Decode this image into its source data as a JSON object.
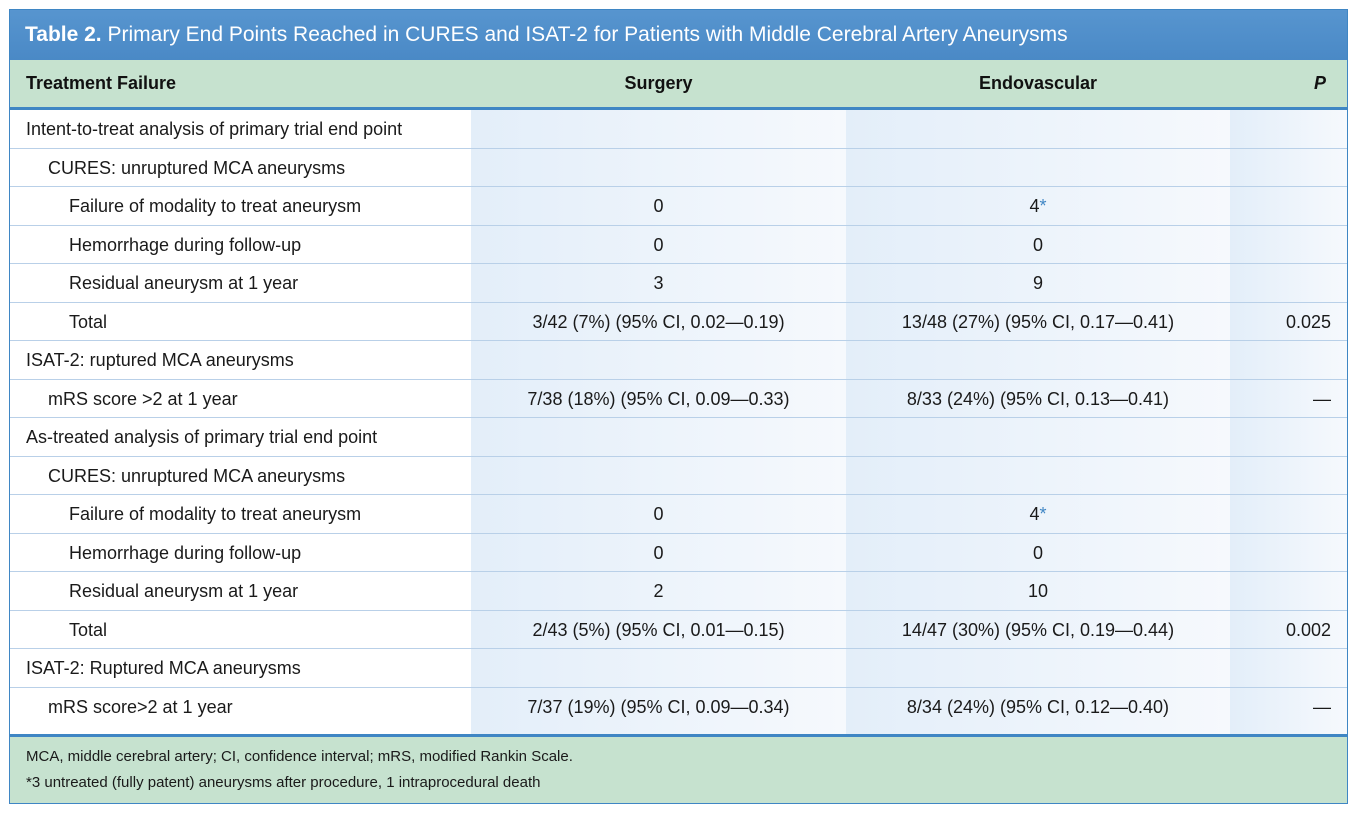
{
  "caption": {
    "label": "Table 2.",
    "title": "Primary End Points Reached in CURES and ISAT-2 for Patients with Middle Cerebral Artery Aneurysms"
  },
  "header": {
    "col1": "Treatment Failure",
    "col2": "Surgery",
    "col3": "Endovascular",
    "col4": "P"
  },
  "rows": [
    {
      "label": "Intent-to-treat analysis of primary trial end point",
      "surgery": "",
      "endo": "",
      "endo_mark": "",
      "p": ""
    },
    {
      "label": "CURES: unruptured MCA aneurysms",
      "surgery": "",
      "endo": "",
      "endo_mark": "",
      "p": ""
    },
    {
      "label": "Failure of modality to treat aneurysm",
      "surgery": "0",
      "endo": "4",
      "endo_mark": "*",
      "p": ""
    },
    {
      "label": "Hemorrhage during follow-up",
      "surgery": "0",
      "endo": "0",
      "endo_mark": "",
      "p": ""
    },
    {
      "label": "Residual aneurysm at 1 year",
      "surgery": "3",
      "endo": "9",
      "endo_mark": "",
      "p": ""
    },
    {
      "label": "Total",
      "surgery": "3/42 (7%) (95% CI, 0.02—0.19)",
      "endo": "13/48 (27%) (95% CI, 0.17—0.41)",
      "endo_mark": "",
      "p": "0.025"
    },
    {
      "label": "ISAT-2: ruptured MCA aneurysms",
      "surgery": "",
      "endo": "",
      "endo_mark": "",
      "p": ""
    },
    {
      "label": "mRS score >2 at 1 year",
      "surgery": "7/38 (18%) (95% CI, 0.09—0.33)",
      "endo": "8/33 (24%) (95% CI, 0.13—0.41)",
      "endo_mark": "",
      "p": "—"
    },
    {
      "label": "As-treated analysis of primary trial end point",
      "surgery": "",
      "endo": "",
      "endo_mark": "",
      "p": ""
    },
    {
      "label": "CURES: unruptured MCA aneurysms",
      "surgery": "",
      "endo": "",
      "endo_mark": "",
      "p": ""
    },
    {
      "label": "Failure of modality to treat aneurysm",
      "surgery": "0",
      "endo": "4",
      "endo_mark": "*",
      "p": ""
    },
    {
      "label": "Hemorrhage during follow-up",
      "surgery": "0",
      "endo": "0",
      "endo_mark": "",
      "p": ""
    },
    {
      "label": "Residual aneurysm at 1 year",
      "surgery": "2",
      "endo": "10",
      "endo_mark": "",
      "p": ""
    },
    {
      "label": "Total",
      "surgery": "2/43 (5%) (95% CI, 0.01—0.15)",
      "endo": "14/47 (30%) (95% CI, 0.19—0.44)",
      "endo_mark": "",
      "p": "0.002"
    },
    {
      "label": "ISAT-2: Ruptured MCA aneurysms",
      "surgery": "",
      "endo": "",
      "endo_mark": "",
      "p": ""
    },
    {
      "label": "mRS score>2 at 1 year",
      "surgery": "7/37 (19%) (95% CI, 0.09—0.34)",
      "endo": "8/34 (24%) (95% CI, 0.12—0.40)",
      "endo_mark": "",
      "p": "—"
    }
  ],
  "footnotes": [
    "MCA, middle cerebral artery; CI, confidence interval; mRS, modified Rankin Scale.",
    "*3 untreated (fully patent) aneurysms after procedure, 1 intraprocedural death"
  ],
  "colors": {
    "accent_blue": "#4a89c6",
    "header_green": "#c6e2cf",
    "column_shade": "#e3eef9"
  }
}
